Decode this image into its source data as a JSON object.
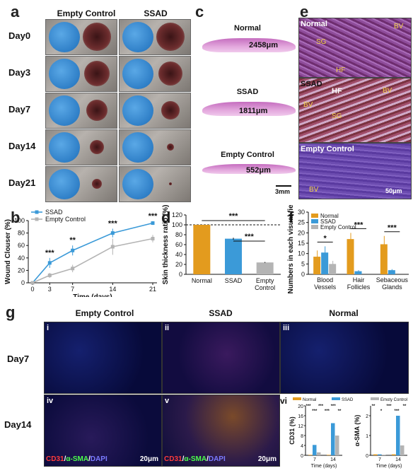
{
  "panel_labels": {
    "a": "a",
    "b": "b",
    "c": "c",
    "d": "d",
    "e": "e",
    "f": "f",
    "g": "g"
  },
  "a": {
    "columns": [
      "Empty Control",
      "SSAD"
    ],
    "rows": [
      "Day0",
      "Day3",
      "Day7",
      "Day14",
      "Day21"
    ]
  },
  "c": {
    "sections": [
      {
        "title": "Normal",
        "measure": "2458μm"
      },
      {
        "title": "SSAD",
        "measure": "1811μm"
      },
      {
        "title": "Empty Control",
        "measure": "552μm"
      }
    ],
    "scale": "3mm"
  },
  "e": {
    "panels": [
      {
        "title": "Normal",
        "labels": [
          "SG",
          "BV",
          "HF"
        ]
      },
      {
        "title": "SSAD",
        "labels": [
          "HF",
          "BV",
          "BV",
          "SG"
        ]
      },
      {
        "title": "Empty Control",
        "labels": [
          "BV"
        ]
      }
    ],
    "scale": "50μm"
  },
  "g": {
    "columns": [
      "Empty Control",
      "SSAD",
      "Normal"
    ],
    "rows": [
      "Day7",
      "Day14"
    ],
    "roman": [
      "i",
      "ii",
      "iii",
      "iv",
      "v",
      "vi"
    ],
    "stain_label": {
      "cd31": "CD31",
      "sep1": "/",
      "asma": "α-SMA",
      "sep2": "/",
      "dapi": "DAPI"
    },
    "scale": "20μm"
  },
  "colors": {
    "ssad": "#3b9ad8",
    "empty": "#b4b4b4",
    "normal": "#e39b1e"
  },
  "chart_data": [
    {
      "type": "line",
      "panel": "b",
      "xlabel": "Time (days)",
      "ylabel": "Wound Clouser (%)",
      "ylim": [
        0,
        100
      ],
      "x": [
        0,
        3,
        7,
        14,
        21
      ],
      "yticks": [
        0,
        20,
        40,
        60,
        80,
        100
      ],
      "series": [
        {
          "name": "SSAD",
          "values": [
            0,
            32,
            52,
            80,
            96
          ],
          "err": [
            0,
            8,
            8,
            7,
            3
          ]
        },
        {
          "name": "Empty Control",
          "values": [
            0,
            12,
            23,
            58,
            71
          ],
          "err": [
            0,
            4,
            6,
            13,
            6
          ]
        }
      ],
      "annotations": [
        {
          "x": 3,
          "text": "***"
        },
        {
          "x": 7,
          "text": "**"
        },
        {
          "x": 14,
          "text": "***"
        },
        {
          "x": 21,
          "text": "***"
        }
      ],
      "legend": "top-left"
    },
    {
      "type": "bar",
      "panel": "d",
      "ylabel": "Skin thickness ratio (%)",
      "ylim": [
        0,
        120
      ],
      "yticks": [
        0,
        20,
        40,
        60,
        80,
        100,
        120
      ],
      "categories": [
        "Normal",
        "SSAD",
        "Empty Control"
      ],
      "values": [
        100,
        72,
        24
      ],
      "err": [
        0,
        2,
        1
      ],
      "reference_line": 100,
      "annotations": [
        {
          "from": "Normal",
          "to": "Empty Control",
          "text": "***"
        },
        {
          "from": "SSAD",
          "to": "Empty Control",
          "text": "***"
        }
      ]
    },
    {
      "type": "bar",
      "panel": "f",
      "ylabel": "Numbers in each visual field",
      "ylim": [
        0,
        30
      ],
      "yticks": [
        0,
        5,
        10,
        15,
        20,
        25,
        30
      ],
      "categories": [
        "Blood Vessels",
        "Hair Follicles",
        "Sebaceous Glands"
      ],
      "series": [
        {
          "name": "Normal",
          "values": [
            8.5,
            17,
            14.5
          ],
          "err": [
            3,
            3,
            4
          ]
        },
        {
          "name": "SSAD",
          "values": [
            10.5,
            1.5,
            2
          ],
          "err": [
            3,
            0.5,
            0.5
          ]
        },
        {
          "name": "Empty Control",
          "values": [
            5,
            0,
            0
          ],
          "err": [
            1.5,
            0,
            0
          ]
        }
      ],
      "annotations": [
        {
          "category": "Blood Vessels",
          "text": "*"
        },
        {
          "category": "Hair Follicles",
          "text": "***"
        },
        {
          "category": "Sebaceous Glands",
          "text": "***"
        }
      ],
      "legend": "top-left"
    },
    {
      "type": "bar",
      "panel": "g-vi-left",
      "ylabel": "CD31 (%)",
      "xlabel": "Time (days)",
      "categories": [
        "7",
        "14"
      ],
      "yticks": [
        0,
        4,
        8,
        12,
        16,
        20
      ],
      "ylim": [
        0,
        20
      ],
      "series": [
        {
          "name": "Normal",
          "values": [
            0.2,
            0.2
          ]
        },
        {
          "name": "SSAD",
          "values": [
            4.2,
            13
          ]
        },
        {
          "name": "Emoty Control",
          "values": [
            1.2,
            8
          ]
        }
      ],
      "legend_entries": [
        "Normal",
        "SSAD",
        "Emoty Control"
      ],
      "annotations": [
        "***",
        "***",
        "***",
        "***",
        "***",
        "**"
      ]
    },
    {
      "type": "bar",
      "panel": "g-vi-right",
      "ylabel": "α-SMA (%)",
      "xlabel": "Time (days)",
      "categories": [
        "7",
        "14"
      ],
      "yticks": [
        0,
        1,
        2
      ],
      "ylim": [
        0,
        2.5
      ],
      "series": [
        {
          "name": "Normal",
          "values": [
            0.05,
            0.05
          ]
        },
        {
          "name": "SSAD",
          "values": [
            0.05,
            2.0
          ]
        },
        {
          "name": "Emoty Control",
          "values": [
            0.03,
            0.5
          ]
        }
      ],
      "annotations": [
        "**",
        "*",
        "***",
        "***",
        "**"
      ]
    }
  ]
}
